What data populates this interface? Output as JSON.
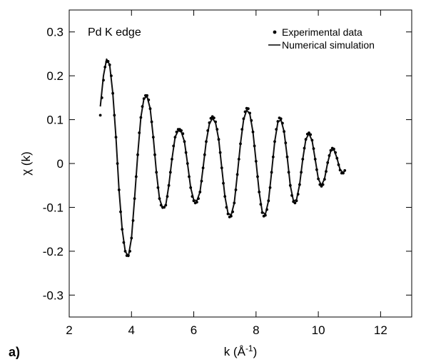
{
  "panel_label": "a)",
  "chart_data": {
    "type": "line",
    "xlabel_main": "k (Å",
    "xlabel_sup": "-1",
    "xlabel_close": ")",
    "ylabel_main": "χ (k)",
    "annotation": "Pd K edge",
    "xlim": [
      2,
      13
    ],
    "ylim": [
      -0.35,
      0.35
    ],
    "x_ticks": [
      2,
      4,
      6,
      8,
      10,
      12
    ],
    "x_tick_labels": [
      "2",
      "4",
      "6",
      "8",
      "10",
      "12"
    ],
    "y_ticks": [
      0.3,
      0.2,
      0.1,
      0,
      -0.1,
      -0.2,
      -0.3
    ],
    "y_tick_labels": [
      "0.3",
      "0.2",
      "0.1",
      "0",
      "-0.1",
      "-0.2",
      "-0.3"
    ],
    "legend_position": "top-right",
    "series": [
      {
        "name": "Experimental data",
        "style": "points",
        "points": [
          [
            3.0,
            0.11
          ],
          [
            3.05,
            0.15
          ],
          [
            3.1,
            0.19
          ],
          [
            3.15,
            0.22
          ],
          [
            3.2,
            0.232
          ],
          [
            3.25,
            0.233
          ],
          [
            3.3,
            0.225
          ],
          [
            3.35,
            0.2
          ],
          [
            3.4,
            0.16
          ],
          [
            3.45,
            0.11
          ],
          [
            3.5,
            0.06
          ],
          [
            3.55,
            0.0
          ],
          [
            3.6,
            -0.06
          ],
          [
            3.65,
            -0.11
          ],
          [
            3.7,
            -0.15
          ],
          [
            3.75,
            -0.18
          ],
          [
            3.8,
            -0.2
          ],
          [
            3.85,
            -0.21
          ],
          [
            3.9,
            -0.21
          ],
          [
            3.95,
            -0.2
          ],
          [
            4.0,
            -0.17
          ],
          [
            4.05,
            -0.13
          ],
          [
            4.1,
            -0.08
          ],
          [
            4.15,
            -0.03
          ],
          [
            4.2,
            0.02
          ],
          [
            4.25,
            0.07
          ],
          [
            4.3,
            0.105
          ],
          [
            4.35,
            0.13
          ],
          [
            4.4,
            0.148
          ],
          [
            4.45,
            0.155
          ],
          [
            4.5,
            0.155
          ],
          [
            4.55,
            0.145
          ],
          [
            4.6,
            0.125
          ],
          [
            4.65,
            0.095
          ],
          [
            4.7,
            0.06
          ],
          [
            4.75,
            0.02
          ],
          [
            4.8,
            -0.02
          ],
          [
            4.85,
            -0.055
          ],
          [
            4.9,
            -0.08
          ],
          [
            4.95,
            -0.095
          ],
          [
            5.0,
            -0.1
          ],
          [
            5.05,
            -0.1
          ],
          [
            5.1,
            -0.095
          ],
          [
            5.15,
            -0.075
          ],
          [
            5.2,
            -0.05
          ],
          [
            5.25,
            -0.02
          ],
          [
            5.3,
            0.01
          ],
          [
            5.35,
            0.04
          ],
          [
            5.4,
            0.06
          ],
          [
            5.45,
            0.072
          ],
          [
            5.5,
            0.078
          ],
          [
            5.55,
            0.078
          ],
          [
            5.6,
            0.075
          ],
          [
            5.65,
            0.068
          ],
          [
            5.7,
            0.05
          ],
          [
            5.75,
            0.025
          ],
          [
            5.8,
            0.0
          ],
          [
            5.85,
            -0.03
          ],
          [
            5.9,
            -0.055
          ],
          [
            5.95,
            -0.075
          ],
          [
            6.0,
            -0.085
          ],
          [
            6.05,
            -0.09
          ],
          [
            6.1,
            -0.088
          ],
          [
            6.15,
            -0.08
          ],
          [
            6.2,
            -0.065
          ],
          [
            6.25,
            -0.04
          ],
          [
            6.3,
            -0.01
          ],
          [
            6.35,
            0.02
          ],
          [
            6.4,
            0.05
          ],
          [
            6.45,
            0.075
          ],
          [
            6.5,
            0.093
          ],
          [
            6.55,
            0.103
          ],
          [
            6.6,
            0.107
          ],
          [
            6.65,
            0.104
          ],
          [
            6.7,
            0.095
          ],
          [
            6.75,
            0.078
          ],
          [
            6.8,
            0.055
          ],
          [
            6.85,
            0.025
          ],
          [
            6.9,
            -0.01
          ],
          [
            6.95,
            -0.045
          ],
          [
            7.0,
            -0.075
          ],
          [
            7.05,
            -0.1
          ],
          [
            7.1,
            -0.115
          ],
          [
            7.15,
            -0.122
          ],
          [
            7.2,
            -0.12
          ],
          [
            7.25,
            -0.11
          ],
          [
            7.3,
            -0.09
          ],
          [
            7.35,
            -0.06
          ],
          [
            7.4,
            -0.025
          ],
          [
            7.45,
            0.01
          ],
          [
            7.5,
            0.045
          ],
          [
            7.55,
            0.078
          ],
          [
            7.6,
            0.102
          ],
          [
            7.65,
            0.118
          ],
          [
            7.7,
            0.126
          ],
          [
            7.75,
            0.125
          ],
          [
            7.8,
            0.115
          ],
          [
            7.85,
            0.098
          ],
          [
            7.9,
            0.072
          ],
          [
            7.95,
            0.04
          ],
          [
            8.0,
            0.005
          ],
          [
            8.05,
            -0.03
          ],
          [
            8.1,
            -0.065
          ],
          [
            8.15,
            -0.093
          ],
          [
            8.2,
            -0.112
          ],
          [
            8.25,
            -0.12
          ],
          [
            8.3,
            -0.118
          ],
          [
            8.35,
            -0.105
          ],
          [
            8.4,
            -0.085
          ],
          [
            8.45,
            -0.055
          ],
          [
            8.5,
            -0.02
          ],
          [
            8.55,
            0.015
          ],
          [
            8.6,
            0.05
          ],
          [
            8.65,
            0.078
          ],
          [
            8.7,
            0.096
          ],
          [
            8.75,
            0.104
          ],
          [
            8.8,
            0.102
          ],
          [
            8.85,
            0.092
          ],
          [
            8.9,
            0.073
          ],
          [
            8.95,
            0.047
          ],
          [
            9.0,
            0.015
          ],
          [
            9.05,
            -0.02
          ],
          [
            9.1,
            -0.05
          ],
          [
            9.15,
            -0.073
          ],
          [
            9.2,
            -0.087
          ],
          [
            9.25,
            -0.09
          ],
          [
            9.3,
            -0.085
          ],
          [
            9.35,
            -0.07
          ],
          [
            9.4,
            -0.048
          ],
          [
            9.45,
            -0.02
          ],
          [
            9.5,
            0.01
          ],
          [
            9.55,
            0.035
          ],
          [
            9.6,
            0.055
          ],
          [
            9.65,
            0.067
          ],
          [
            9.7,
            0.07
          ],
          [
            9.75,
            0.066
          ],
          [
            9.8,
            0.053
          ],
          [
            9.85,
            0.034
          ],
          [
            9.9,
            0.01
          ],
          [
            9.95,
            -0.014
          ],
          [
            10.0,
            -0.035
          ],
          [
            10.05,
            -0.048
          ],
          [
            10.1,
            -0.052
          ],
          [
            10.15,
            -0.048
          ],
          [
            10.2,
            -0.036
          ],
          [
            10.25,
            -0.018
          ],
          [
            10.3,
            0.002
          ],
          [
            10.35,
            0.018
          ],
          [
            10.4,
            0.03
          ],
          [
            10.45,
            0.035
          ],
          [
            10.5,
            0.033
          ],
          [
            10.55,
            0.025
          ],
          [
            10.6,
            0.012
          ],
          [
            10.65,
            -0.003
          ],
          [
            10.7,
            -0.015
          ],
          [
            10.75,
            -0.022
          ],
          [
            10.8,
            -0.022
          ],
          [
            10.85,
            -0.016
          ]
        ]
      },
      {
        "name": "Numerical simulation",
        "style": "line",
        "points": [
          [
            3.0,
            0.13
          ],
          [
            3.1,
            0.2
          ],
          [
            3.2,
            0.238
          ],
          [
            3.3,
            0.225
          ],
          [
            3.4,
            0.16
          ],
          [
            3.5,
            0.06
          ],
          [
            3.6,
            -0.06
          ],
          [
            3.7,
            -0.15
          ],
          [
            3.8,
            -0.2
          ],
          [
            3.9,
            -0.212
          ],
          [
            4.0,
            -0.17
          ],
          [
            4.1,
            -0.08
          ],
          [
            4.2,
            0.02
          ],
          [
            4.3,
            0.105
          ],
          [
            4.4,
            0.148
          ],
          [
            4.5,
            0.153
          ],
          [
            4.6,
            0.125
          ],
          [
            4.7,
            0.06
          ],
          [
            4.8,
            -0.02
          ],
          [
            4.9,
            -0.08
          ],
          [
            5.0,
            -0.102
          ],
          [
            5.1,
            -0.095
          ],
          [
            5.2,
            -0.05
          ],
          [
            5.3,
            0.01
          ],
          [
            5.4,
            0.06
          ],
          [
            5.5,
            0.075
          ],
          [
            5.6,
            0.072
          ],
          [
            5.7,
            0.05
          ],
          [
            5.8,
            0.0
          ],
          [
            5.9,
            -0.055
          ],
          [
            6.0,
            -0.083
          ],
          [
            6.1,
            -0.085
          ],
          [
            6.2,
            -0.065
          ],
          [
            6.3,
            -0.01
          ],
          [
            6.4,
            0.05
          ],
          [
            6.5,
            0.09
          ],
          [
            6.6,
            0.103
          ],
          [
            6.7,
            0.093
          ],
          [
            6.8,
            0.055
          ],
          [
            6.9,
            -0.01
          ],
          [
            7.0,
            -0.075
          ],
          [
            7.1,
            -0.113
          ],
          [
            7.2,
            -0.118
          ],
          [
            7.3,
            -0.09
          ],
          [
            7.4,
            -0.025
          ],
          [
            7.5,
            0.045
          ],
          [
            7.6,
            0.1
          ],
          [
            7.7,
            0.122
          ],
          [
            7.8,
            0.113
          ],
          [
            7.9,
            0.072
          ],
          [
            8.0,
            0.005
          ],
          [
            8.1,
            -0.065
          ],
          [
            8.2,
            -0.11
          ],
          [
            8.3,
            -0.116
          ],
          [
            8.4,
            -0.085
          ],
          [
            8.5,
            -0.02
          ],
          [
            8.6,
            0.05
          ],
          [
            8.7,
            0.094
          ],
          [
            8.8,
            0.1
          ],
          [
            8.9,
            0.073
          ],
          [
            9.0,
            0.015
          ],
          [
            9.1,
            -0.05
          ],
          [
            9.2,
            -0.085
          ],
          [
            9.3,
            -0.083
          ],
          [
            9.4,
            -0.048
          ],
          [
            9.5,
            0.01
          ],
          [
            9.6,
            0.055
          ],
          [
            9.7,
            0.068
          ],
          [
            9.8,
            0.052
          ],
          [
            9.9,
            0.01
          ],
          [
            10.0,
            -0.035
          ],
          [
            10.1,
            -0.05
          ],
          [
            10.2,
            -0.035
          ],
          [
            10.3,
            0.002
          ],
          [
            10.4,
            0.028
          ],
          [
            10.5,
            0.032
          ],
          [
            10.6,
            0.012
          ],
          [
            10.7,
            -0.014
          ],
          [
            10.8,
            -0.021
          ],
          [
            10.85,
            -0.016
          ]
        ]
      }
    ]
  }
}
